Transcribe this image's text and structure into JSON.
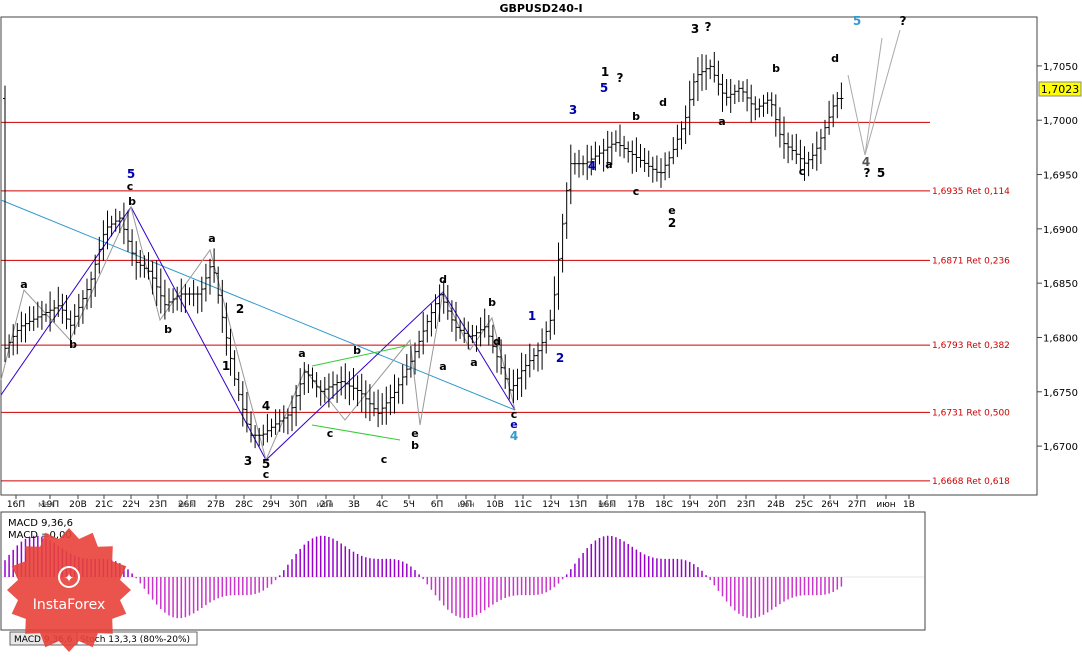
{
  "chart_data": {
    "type": "candlestick",
    "title": "GBPUSD240-I",
    "price_axis": {
      "ylim": [
        1.6655,
        1.7095
      ],
      "ticks": [
        "1,7050",
        "1,7000",
        "1,6950",
        "1,6900",
        "1,6850",
        "1,6800",
        "1,6750",
        "1,6700"
      ],
      "tick_values": [
        1.705,
        1.7,
        1.695,
        1.69,
        1.685,
        1.68,
        1.675,
        1.67
      ],
      "current_price_label": "1,7023",
      "current_price": 1.7023
    },
    "x_ticks": [
      "16П",
      "19П",
      "20В",
      "21С",
      "22Ч",
      "23П",
      "26П",
      "27В",
      "28С",
      "29Ч",
      "30П",
      "2П",
      "3В",
      "4С",
      "5Ч",
      "6П",
      "9П",
      "10В",
      "11С",
      "12Ч",
      "13П",
      "16П",
      "17В",
      "18С",
      "19Ч",
      "20П",
      "23П",
      "24В",
      "25С",
      "26Ч",
      "27П",
      "июн",
      "1В"
    ],
    "month_labels": [
      "мая",
      "мая",
      "июн",
      "июн",
      "мая"
    ],
    "fib_levels": [
      {
        "label": "1,6935 Ret 0,114",
        "value": 1.6935
      },
      {
        "label": "1,6871 Ret 0,236",
        "value": 1.6871
      },
      {
        "label": "1,6793 Ret 0,382",
        "value": 1.6793
      },
      {
        "label": "1,6731 Ret 0,500",
        "value": 1.6731
      },
      {
        "label": "1,6668 Ret 0,618",
        "value": 1.6668
      }
    ],
    "horizontal_line": {
      "value": 1.6998
    },
    "wave_labels": [
      "a",
      "b",
      "c",
      "5",
      "b",
      "a",
      "b",
      "2",
      "1",
      "3",
      "4",
      "5",
      "c",
      "a",
      "b",
      "c",
      "d",
      "e",
      "b",
      "a",
      "c",
      "b",
      "a",
      "d",
      "c",
      "e",
      "4",
      "1",
      "2",
      "3",
      "4",
      "5",
      "a",
      "b",
      "c",
      "d",
      "e",
      "2",
      "1",
      "?",
      "3",
      "?",
      "a",
      "b",
      "c",
      "d",
      "4",
      "?",
      "5",
      "5",
      "?"
    ],
    "macd": {
      "label_main": "MACD 9,36,6",
      "label_signal": "MACD =0,00",
      "tabs": [
        "MACD 9,36,6",
        "Stoch 13,3,3 (80%-20%)"
      ]
    }
  },
  "watermark": {
    "brand": "InstaForex"
  },
  "colors": {
    "fib": "#cc0000",
    "wave_blue": "#0000aa",
    "trend": "#3399cc",
    "macd_pos": "#9900cc",
    "macd_neg": "#cc33cc"
  }
}
